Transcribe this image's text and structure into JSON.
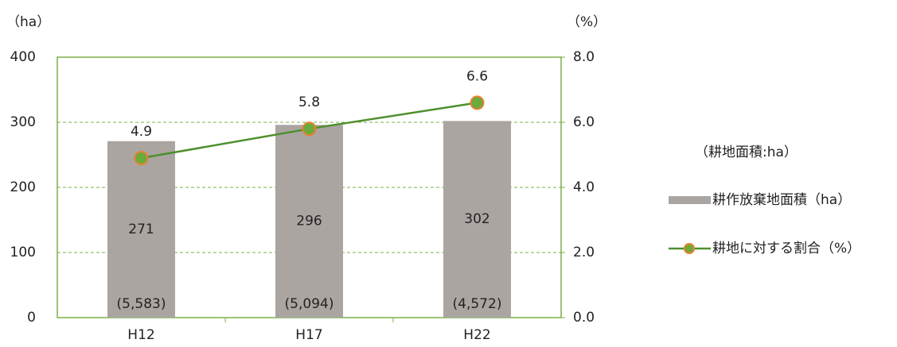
{
  "chart_data": {
    "type": "bar",
    "y_label": "（ha）",
    "y2_label": "（%）",
    "categories": [
      "H12",
      "H17",
      "H22"
    ],
    "series": [
      {
        "name": "耕作放棄地面積（ha）",
        "type": "bar",
        "color": "#aba5a2",
        "values": [
          271,
          296,
          302
        ]
      },
      {
        "name": "耕地に対する割合（%）",
        "type": "line",
        "axis": "y2",
        "color": "#4e8f2c",
        "marker_color": "#6caa3c",
        "marker_edge": "#e6812f",
        "values": [
          4.9,
          5.8,
          6.6
        ]
      }
    ],
    "category_notes": [
      "(5,583)",
      "(5,094)",
      "(4,572)"
    ],
    "legend_note": "（耕地面積:ha）",
    "ylim": [
      0,
      400
    ],
    "yticks": [
      0,
      100,
      200,
      300,
      400
    ],
    "y2lim": [
      0,
      8
    ],
    "y2ticks": [
      {
        "value": 0,
        "label": "0.0"
      },
      {
        "value": 2,
        "label": "2.0"
      },
      {
        "value": 4,
        "label": "4.0"
      },
      {
        "value": 6,
        "label": "6.0"
      },
      {
        "value": 8,
        "label": "8.0"
      }
    ],
    "grid": true,
    "grid_color": "#7ab04a",
    "legend": "right"
  }
}
